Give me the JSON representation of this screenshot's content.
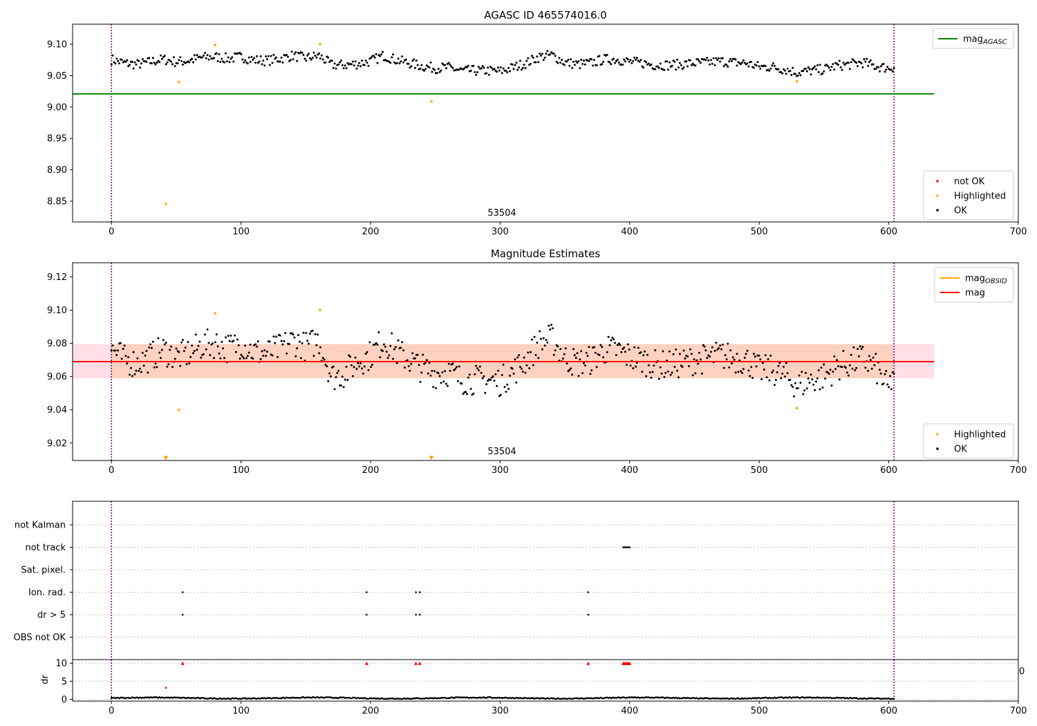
{
  "colors": {
    "ok": "#000000",
    "highlighted": "#ffa500",
    "not_ok": "#ff0000",
    "mag_agasc": "#008000",
    "mag_obsid": "#ffa500",
    "mag": "#ff0000",
    "band": "#ffd1c0",
    "band_edge": "#ffe0e6",
    "obs_boundary": "#800080"
  },
  "chart_data": [
    {
      "id": "agasc",
      "type": "scatter",
      "title": "AGASC ID 465574016.0",
      "xlim": [
        -30,
        700
      ],
      "ylim": [
        8.817,
        9.132
      ],
      "xticks": [
        0,
        100,
        200,
        300,
        400,
        500,
        600,
        700
      ],
      "yticks": [
        8.85,
        8.9,
        8.95,
        9.0,
        9.05,
        9.1
      ],
      "ytick_labels": [
        "8.85",
        "8.90",
        "8.95",
        "9.00",
        "9.05",
        "9.10"
      ],
      "obsid_label": {
        "text": "53504",
        "x": 302
      },
      "obs_boundaries": [
        0,
        604
      ],
      "hline": {
        "name": "mag",
        "subscript": "AGASC",
        "value": 9.021,
        "x0": -30,
        "x1": 635
      },
      "series_ok": {
        "name": "OK",
        "x": [
          0,
          10,
          20,
          30,
          40,
          50,
          60,
          70,
          80,
          90,
          100,
          110,
          120,
          130,
          140,
          150,
          160,
          170,
          180,
          190,
          200,
          210,
          220,
          230,
          240,
          250,
          260,
          270,
          280,
          290,
          300,
          310,
          320,
          330,
          340,
          350,
          360,
          370,
          380,
          390,
          400,
          410,
          420,
          430,
          440,
          450,
          460,
          470,
          480,
          490,
          500,
          510,
          520,
          530,
          540,
          550,
          560,
          570,
          580,
          590,
          600,
          604
        ],
        "y": [
          9.076,
          9.07,
          9.068,
          9.072,
          9.076,
          9.072,
          9.074,
          9.079,
          9.08,
          9.077,
          9.08,
          9.075,
          9.074,
          9.077,
          9.082,
          9.078,
          9.082,
          9.067,
          9.067,
          9.069,
          9.073,
          9.082,
          9.075,
          9.07,
          9.065,
          9.062,
          9.063,
          9.058,
          9.058,
          9.058,
          9.057,
          9.063,
          9.07,
          9.08,
          9.083,
          9.071,
          9.068,
          9.07,
          9.076,
          9.076,
          9.072,
          9.07,
          9.067,
          9.067,
          9.068,
          9.07,
          9.071,
          9.073,
          9.071,
          9.07,
          9.064,
          9.064,
          9.06,
          9.055,
          9.058,
          9.06,
          9.066,
          9.068,
          9.071,
          9.065,
          9.062,
          9.064
        ],
        "jitter": 0.008
      },
      "series_highlighted": {
        "name": "Highlighted",
        "x": [
          42,
          52,
          80,
          161,
          247,
          529
        ],
        "y": [
          8.846,
          9.04,
          9.099,
          9.1,
          9.009,
          9.041
        ]
      },
      "series_not_ok": {
        "name": "not OK",
        "x": [],
        "y": []
      },
      "legend_upper": [
        {
          "label": "mag",
          "subscript": "AGASC",
          "color": "#008000"
        }
      ],
      "legend_lower": [
        {
          "label": "not OK",
          "color": "#ff0000"
        },
        {
          "label": "Highlighted",
          "color": "#ffa500"
        },
        {
          "label": "OK",
          "color": "#000000"
        }
      ]
    },
    {
      "id": "estimates",
      "type": "scatter",
      "title": "Magnitude Estimates",
      "xlim": [
        -30,
        700
      ],
      "ylim": [
        9.0095,
        9.1285
      ],
      "xticks": [
        0,
        100,
        200,
        300,
        400,
        500,
        600,
        700
      ],
      "yticks": [
        9.02,
        9.04,
        9.06,
        9.08,
        9.1,
        9.12
      ],
      "ytick_labels": [
        "9.02",
        "9.04",
        "9.06",
        "9.08",
        "9.10",
        "9.12"
      ],
      "obsid_label": {
        "text": "53504",
        "x": 302
      },
      "obs_boundaries": [
        0,
        604
      ],
      "band": {
        "y0": 9.059,
        "y1": 9.0795,
        "x0": -30,
        "x1": 635,
        "outside_x0": 0,
        "outside_x1": 604
      },
      "lines": [
        {
          "name": "mag",
          "subscript": "OBSID",
          "value": 9.069,
          "color": "#ffa500"
        },
        {
          "name": "mag",
          "subscript": "",
          "value": 9.069,
          "color": "#ff0000"
        }
      ],
      "series_ok": {
        "name": "OK",
        "x": [
          0,
          10,
          20,
          30,
          40,
          50,
          60,
          70,
          80,
          90,
          100,
          110,
          120,
          130,
          140,
          150,
          160,
          170,
          180,
          190,
          200,
          210,
          220,
          230,
          240,
          250,
          260,
          270,
          280,
          290,
          300,
          310,
          320,
          330,
          340,
          350,
          360,
          370,
          380,
          390,
          400,
          410,
          420,
          430,
          440,
          450,
          460,
          470,
          480,
          490,
          500,
          510,
          520,
          530,
          540,
          550,
          560,
          570,
          580,
          590,
          600,
          604
        ],
        "y": [
          9.077,
          9.07,
          9.068,
          9.072,
          9.076,
          9.072,
          9.074,
          9.079,
          9.08,
          9.077,
          9.08,
          9.075,
          9.074,
          9.077,
          9.082,
          9.078,
          9.082,
          9.06,
          9.062,
          9.069,
          9.073,
          9.082,
          9.075,
          9.07,
          9.065,
          9.062,
          9.063,
          9.058,
          9.058,
          9.058,
          9.057,
          9.063,
          9.07,
          9.08,
          9.083,
          9.071,
          9.068,
          9.07,
          9.076,
          9.076,
          9.072,
          9.07,
          9.067,
          9.067,
          9.068,
          9.07,
          9.071,
          9.073,
          9.071,
          9.07,
          9.064,
          9.064,
          9.06,
          9.055,
          9.058,
          9.06,
          9.066,
          9.068,
          9.071,
          9.065,
          9.052,
          9.064
        ],
        "jitter": 0.009
      },
      "series_highlighted": {
        "name": "Highlighted",
        "x": [
          52,
          80,
          161,
          529
        ],
        "y": [
          9.04,
          9.098,
          9.1,
          9.041
        ]
      },
      "lower_limits": {
        "x": [
          42,
          247
        ],
        "y": [
          9.011,
          9.011
        ]
      },
      "legend_upper": [
        {
          "label": "mag",
          "subscript": "OBSID",
          "color": "#ffa500"
        },
        {
          "label": "mag",
          "subscript": "",
          "color": "#ff0000"
        }
      ],
      "legend_lower": [
        {
          "label": "Highlighted",
          "color": "#ffa500"
        },
        {
          "label": "OK",
          "color": "#000000"
        }
      ]
    },
    {
      "id": "flags",
      "type": "scatter",
      "title": "",
      "xlim": [
        -30,
        700
      ],
      "categories": [
        "not Kalman",
        "not track",
        "Sat. pixel.",
        "Ion. rad.",
        "dr > 5",
        "OBS not OK"
      ],
      "obs_boundaries": [
        0,
        604
      ],
      "flag_points": [
        {
          "category": "not track",
          "x": [
            395,
            396,
            397,
            398,
            399,
            400
          ]
        },
        {
          "category": "Ion. rad.",
          "x": [
            55,
            197,
            235,
            238,
            368
          ]
        },
        {
          "category": "dr > 5",
          "x": [
            55,
            197,
            235,
            238,
            368
          ]
        }
      ]
    },
    {
      "id": "dr",
      "type": "scatter",
      "title": "",
      "xlim": [
        -30,
        700
      ],
      "ylim": [
        -0.5,
        11
      ],
      "yticks": [
        0,
        5,
        10
      ],
      "ytick_labels": [
        "0",
        "5",
        "10"
      ],
      "xticks": [
        0,
        100,
        200,
        300,
        400,
        500,
        600,
        700
      ],
      "ylabel": "dr",
      "obs_boundaries": [
        0,
        604
      ],
      "series_dr": {
        "name": "dr",
        "x0": 0,
        "x1": 604,
        "base": 0.35,
        "amp": 0.25
      },
      "series_not_ok": {
        "name": "not OK",
        "x": [
          42
        ],
        "y": [
          3.2
        ]
      },
      "clipped_markers": {
        "x": [
          55,
          197,
          235,
          238,
          368,
          395,
          396,
          397,
          398,
          399,
          400
        ],
        "y": 10
      },
      "stray_tick_label": "0"
    }
  ]
}
